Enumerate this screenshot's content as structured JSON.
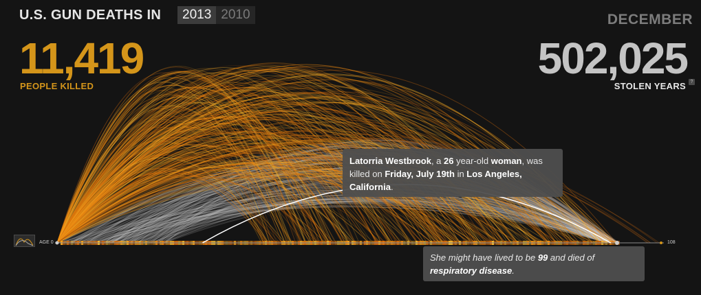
{
  "header": {
    "title": "U.S. GUN DEATHS IN",
    "years": [
      {
        "label": "2013",
        "active": true
      },
      {
        "label": "2010",
        "active": false
      }
    ]
  },
  "stats": {
    "killed_count": "11,419",
    "killed_label": "PEOPLE KILLED",
    "month": "DECEMBER",
    "stolen_years": "502,025",
    "stolen_label": "STOLEN YEARS",
    "help_icon": "?"
  },
  "axis": {
    "start_label": "AGE 0",
    "end_label": "108"
  },
  "highlight": {
    "name": "Latorria Westbrook",
    "age": "26",
    "gender": "woman",
    "date": "Friday, July 19th",
    "city": "Los Angeles, California",
    "text_a": ", a ",
    "text_b": " year-old ",
    "text_c": ", was killed on ",
    "text_d": " in ",
    "text_e": ".",
    "age_at_death": 26,
    "life_expectancy": 99,
    "lived_text_a": "She might have lived to be ",
    "lived_age": "99",
    "lived_text_b": " and died of ",
    "cause": "respiratory disease",
    "lived_text_c": "."
  },
  "colors": {
    "background": "#141414",
    "killed": "#d4951a",
    "arc_orange": "#f08a10",
    "arc_yellow": "#f5b830",
    "arc_white": "#cfcfcf",
    "stolen": "#c4c4c4"
  },
  "icons": {
    "mini_chart": "age-distribution-icon",
    "help": "help-icon"
  }
}
